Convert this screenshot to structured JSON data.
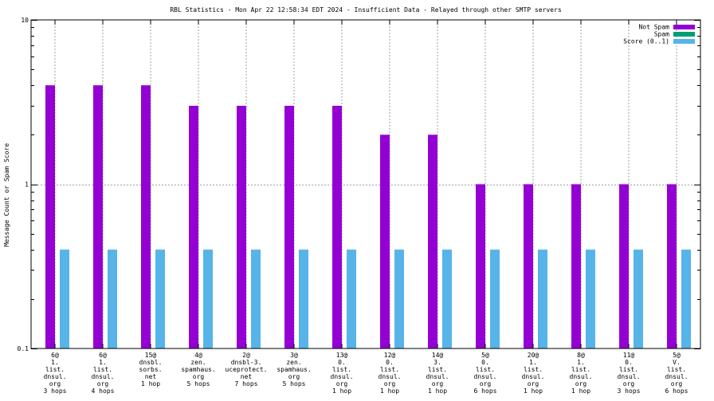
{
  "chart_data": {
    "type": "bar",
    "title": "RBL Statistics - Mon Apr 22 12:58:34 EDT 2024 - Insufficient Data - Relayed through other SMTP servers",
    "xlabel": "",
    "ylabel": "Message Count or Spam Score",
    "yscale": "log",
    "ylim": [
      0.1,
      10
    ],
    "yticks": [
      {
        "value": 10,
        "label": "10"
      },
      {
        "value": 1,
        "label": "1"
      },
      {
        "value": 0.1,
        "label": "0.1"
      }
    ],
    "grid": true,
    "legend_position": "top-right",
    "categories": [
      [
        "6@",
        "1.",
        "list.",
        "dnsul.",
        "org",
        "3 hops"
      ],
      [
        "6@",
        "1.",
        "list.",
        "dnsul.",
        "org",
        "4 hops"
      ],
      [
        "15@",
        "dnsbl.",
        "sorbs.",
        "net",
        "1 hop"
      ],
      [
        "4@",
        "zen.",
        "spamhaus.",
        "org",
        "5 hops"
      ],
      [
        "2@",
        "dnsbl-3.",
        "uceprotect.",
        "net",
        "7 hops"
      ],
      [
        "3@",
        "zen.",
        "spamhaus.",
        "org",
        "5 hops"
      ],
      [
        "13@",
        "0.",
        "list.",
        "dnsul.",
        "org",
        "1 hop"
      ],
      [
        "12@",
        "0.",
        "list.",
        "dnsul.",
        "org",
        "1 hop"
      ],
      [
        "14@",
        "3.",
        "list.",
        "dnsul.",
        "org",
        "1 hop"
      ],
      [
        "5@",
        "0.",
        "list.",
        "dnsul.",
        "org",
        "6 hops"
      ],
      [
        "20@",
        "1.",
        "list.",
        "dnsul.",
        "org",
        "1 hop"
      ],
      [
        "8@",
        "1.",
        "list.",
        "dnsul.",
        "org",
        "1 hop"
      ],
      [
        "11@",
        "0.",
        "list.",
        "dnsul.",
        "org",
        "3 hops"
      ],
      [
        "5@",
        "V.",
        "list.",
        "dnsul.",
        "org",
        "6 hops"
      ]
    ],
    "series": [
      {
        "name": "Not Spam",
        "color": "#9400d3",
        "values": [
          4,
          4,
          4,
          3,
          3,
          3,
          3,
          2,
          2,
          1,
          1,
          1,
          1,
          1
        ]
      },
      {
        "name": "Spam",
        "color": "#009e73",
        "values": [
          0,
          0,
          0,
          0,
          0,
          0,
          0,
          0,
          0,
          0,
          0,
          0,
          0,
          0
        ]
      },
      {
        "name": "Score (0..1)",
        "color": "#56b4e9",
        "values": [
          0.4,
          0.4,
          0.4,
          0.4,
          0.4,
          0.4,
          0.4,
          0.4,
          0.4,
          0.4,
          0.4,
          0.4,
          0.4,
          0.4
        ]
      }
    ]
  }
}
